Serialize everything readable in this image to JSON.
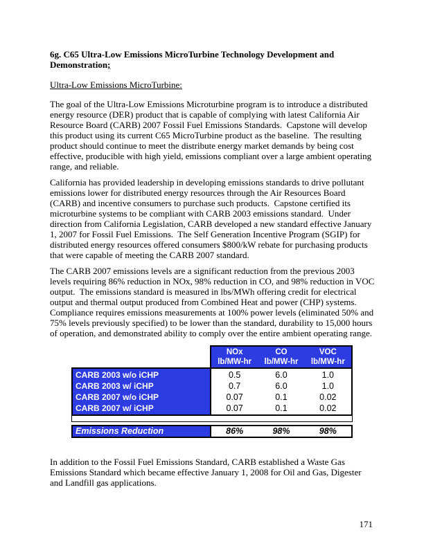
{
  "page": {
    "number": "171"
  },
  "doc": {
    "heading_main": "6g. C65 Ultra-Low Emissions MicroTurbine Technology Development and Demonstration",
    "heading_punct": ";",
    "subheading": "Ultra-Low Emissions MicroTurbine:",
    "paragraphs": [
      "The goal of the Ultra-Low Emissions Microturbine program is to introduce a distributed energy resource (DER) product that is capable of complying with latest California Air Resource Board (CARB) 2007 Fossil Fuel Emissions Standards.  Capstone will develop this product using its current C65 MicroTurbine product as the baseline.  The resulting product should continue to meet the distribute energy market demands by being cost effective, producible with high yield, emissions compliant over a large ambient operating range, and reliable.",
      "California has provided leadership in developing emissions standards to drive pollutant emissions lower for distributed energy resources through the Air Resources Board (CARB) and incentive consumers to purchase such products.  Capstone certified its microturbine systems to be compliant with CARB 2003 emissions standard.  Under direction from California Legislation, CARB developed a new standard effective January 1, 2007 for Fossil Fuel Emissions.  The Self Generation Incentive Program (SGIP) for distributed energy resources offered consumers $800/kW rebate for purchasing products that were capable of meeting the CARB 2007 standard.",
      "The CARB 2007 emissions levels are a significant reduction from the previous 2003 levels requiring 86% reduction in NOx, 98% reduction in CO, and 98% reduction in VOC output.  The emissions standard is measured in lbs/MWh offering credit for electrical output and thermal output produced from Combined Heat and power (CHP) systems.  Compliance requires emissions measurements at 100% power levels (eliminated 50% and 75% levels previously specified) to be lower than the standard, durability to 15,000 hours of operation, and demonstrated ability to comply over the entire ambient operating range."
    ],
    "closing": "In addition to the Fossil Fuel Emissions Standard, CARB established a Waste Gas Emissions Standard which became effective January 1, 2008 for Oil and Gas, Digester and Landfill gas applications."
  },
  "table": {
    "columns": [
      {
        "name": "NOx",
        "unit": "lb/MW-hr"
      },
      {
        "name": "CO",
        "unit": "lb/MW-hr"
      },
      {
        "name": "VOC",
        "unit": "lb/MW-hr"
      }
    ],
    "rows": [
      {
        "label": "CARB 2003 w/o iCHP",
        "values": [
          "0.5",
          "6.0",
          "1.0"
        ]
      },
      {
        "label": "CARB 2003 w/ iCHP",
        "values": [
          "0.7",
          "6.0",
          "1.0"
        ]
      },
      {
        "label": "CARB 2007 w/o iCHP",
        "values": [
          "0.07",
          "0.1",
          "0.02"
        ]
      },
      {
        "label": "CARB 2007 w/ iCHP",
        "values": [
          "0.07",
          "0.1",
          "0.02"
        ]
      }
    ],
    "summary": {
      "label": "Emissions Reduction",
      "values": [
        "86%",
        "98%",
        "98%"
      ]
    },
    "colors": {
      "header_bg": "#2d3ce0",
      "header_text": "#ffffff",
      "border": "#000000",
      "body_text": "#000000"
    }
  }
}
